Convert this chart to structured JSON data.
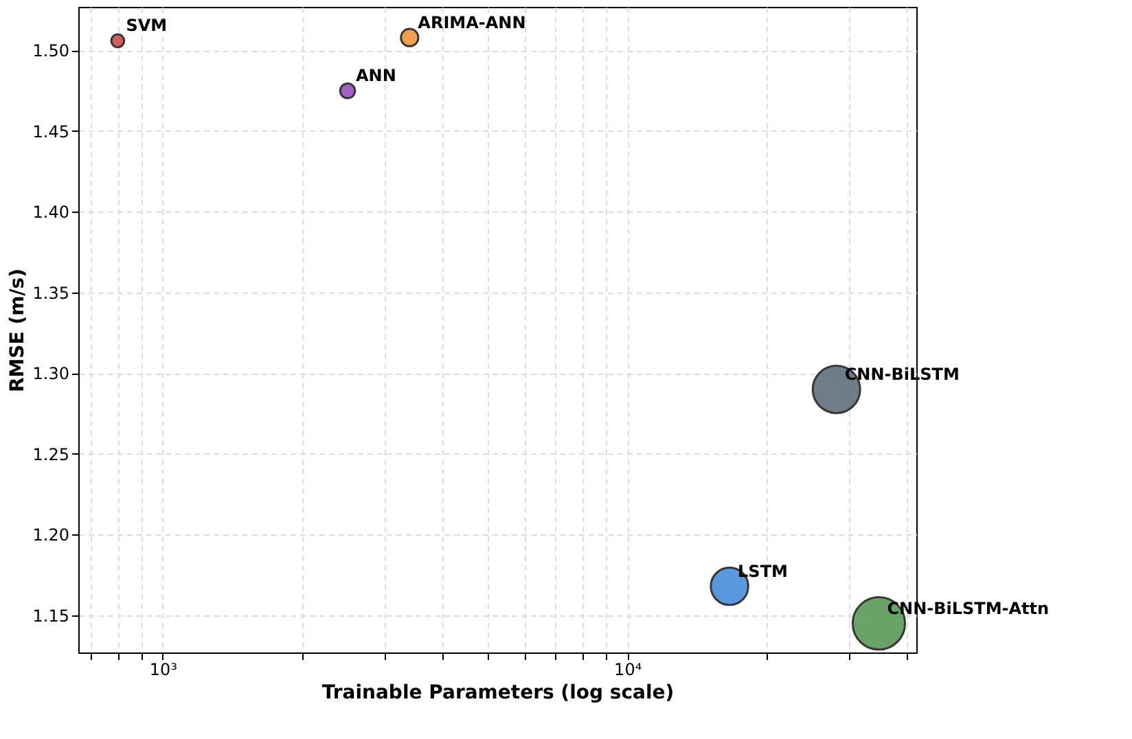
{
  "chart_data": {
    "type": "bubble",
    "xlabel": "Trainable Parameters (log scale)",
    "ylabel": "RMSE (m/s)",
    "log": "x",
    "grid": true,
    "legend": false,
    "xlim": [
      658,
      41900
    ],
    "ylim": [
      1.127,
      1.527
    ],
    "xticks": [
      {
        "value": 700,
        "label": null
      },
      {
        "value": 800,
        "label": null
      },
      {
        "value": 900,
        "label": null
      },
      {
        "value": 1000,
        "label": "10³"
      },
      {
        "value": 2000,
        "label": null
      },
      {
        "value": 3000,
        "label": null
      },
      {
        "value": 4000,
        "label": null
      },
      {
        "value": 5000,
        "label": null
      },
      {
        "value": 6000,
        "label": null
      },
      {
        "value": 7000,
        "label": null
      },
      {
        "value": 8000,
        "label": null
      },
      {
        "value": 9000,
        "label": null
      },
      {
        "value": 10000,
        "label": "10⁴"
      },
      {
        "value": 20000,
        "label": null
      },
      {
        "value": 30000,
        "label": null
      },
      {
        "value": 40000,
        "label": null
      }
    ],
    "yticks": [
      {
        "value": 1.15,
        "label": "1.15"
      },
      {
        "value": 1.2,
        "label": "1.20"
      },
      {
        "value": 1.25,
        "label": "1.25"
      },
      {
        "value": 1.3,
        "label": "1.30"
      },
      {
        "value": 1.35,
        "label": "1.35"
      },
      {
        "value": 1.4,
        "label": "1.40"
      },
      {
        "value": 1.45,
        "label": "1.45"
      },
      {
        "value": 1.5,
        "label": "1.50"
      }
    ],
    "series": [
      {
        "name": "SVM",
        "color": "#c9504f",
        "x": [
          800
        ],
        "values": [
          1.506
        ],
        "sizes": [
          0.06
        ]
      },
      {
        "name": "ANN",
        "color": "#9b4fbf",
        "x": [
          2500
        ],
        "values": [
          1.475
        ],
        "sizes": [
          0.08
        ]
      },
      {
        "name": "ARIMA-ANN",
        "color": "#f0973a",
        "x": [
          3400
        ],
        "values": [
          1.508
        ],
        "sizes": [
          0.11
        ]
      },
      {
        "name": "LSTM",
        "color": "#4a8fdc",
        "x": [
          16600
        ],
        "values": [
          1.168
        ],
        "sizes": [
          0.51
        ]
      },
      {
        "name": "CNN-BiLSTM",
        "color": "#5f6f7c",
        "x": [
          28200
        ],
        "values": [
          1.29
        ],
        "sizes": [
          0.82
        ]
      },
      {
        "name": "CNN-BiLSTM-Attn",
        "color": "#5a9a57",
        "x": [
          34800
        ],
        "values": [
          1.145
        ],
        "sizes": [
          1.0
        ]
      }
    ]
  }
}
